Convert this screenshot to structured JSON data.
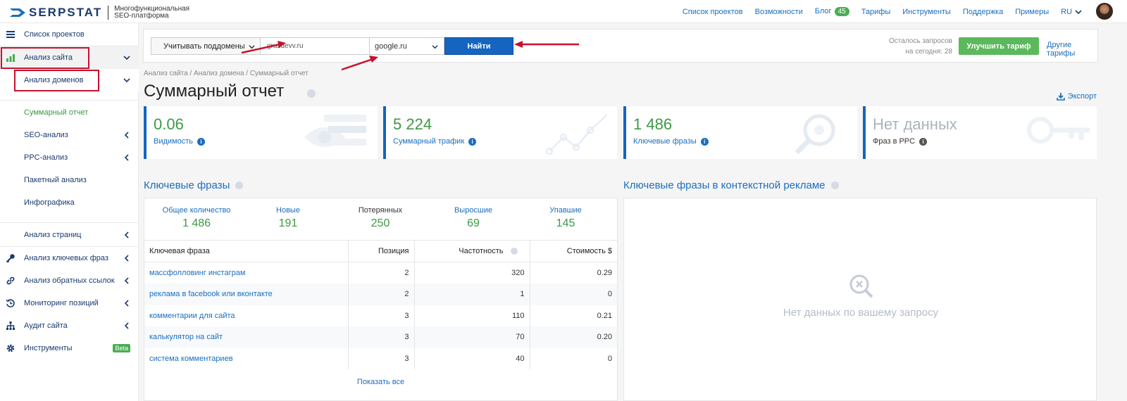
{
  "header": {
    "logo_text": "SERPSTAT",
    "logo_sub_line1": "Многофункциональная",
    "logo_sub_line2": "SEO-платформа",
    "nav": [
      "Список проектов",
      "Возможности",
      "Блог",
      "Тарифы",
      "Инструменты",
      "Поддержка",
      "Примеры"
    ],
    "blog_count": "45",
    "lang": "RU"
  },
  "sidebar": {
    "projects": "Список проектов",
    "site_analysis": "Анализ сайта",
    "domain_analysis": "Анализ доменов",
    "summary": "Суммарный отчет",
    "seo": "SEO-анализ",
    "ppc": "PPC-анализ",
    "batch": "Пакетный анализ",
    "infographics": "Инфографика",
    "pages": "Анализ страниц",
    "keywords": "Анализ ключевых фраз",
    "backlinks": "Анализ обратных ссылок",
    "monitoring": "Мониторинг позиций",
    "audit": "Аудит сайта",
    "tools": "Инструменты",
    "beta": "Beta"
  },
  "search": {
    "subdomain_label": "Учитывать поддомены",
    "domain_value": "gruzdevv.ru",
    "engine": "google.ru",
    "find": "Найти",
    "requests_line1": "Осталось запросов",
    "requests_line2": "на сегодня: 28",
    "upgrade": "Улучшить тариф",
    "other_plans": "Другие тарифы"
  },
  "breadcrumb": "Анализ сайта / Анализ домена / Суммарный отчет",
  "page_title": "Суммарный отчет",
  "export": "Экспорт",
  "cards": {
    "visibility": {
      "value": "0.06",
      "label": "Видимость"
    },
    "traffic": {
      "value": "5 224",
      "label": "Суммарный трафик"
    },
    "keywords": {
      "value": "1 486",
      "label": "Ключевые фразы"
    },
    "ppc": {
      "value": "Нет данных",
      "label": "Фраз в PPC"
    }
  },
  "keywords_section": {
    "title": "Ключевые фразы",
    "stats": {
      "total": {
        "label": "Общее количество",
        "value": "1 486"
      },
      "new": {
        "label": "Новые",
        "value": "191"
      },
      "lost": {
        "label": "Потерянных",
        "value": "250"
      },
      "improved": {
        "label": "Выросшие",
        "value": "69"
      },
      "declined": {
        "label": "Упавшие",
        "value": "145"
      }
    },
    "columns": [
      "Ключевая фраза",
      "Позиция",
      "Частотность",
      "Стоимость $"
    ],
    "rows": [
      [
        "массфолловинг инстаграм",
        "2",
        "320",
        "0.29"
      ],
      [
        "реклама в facebook или вконтакте",
        "2",
        "1",
        "0"
      ],
      [
        "комментарии для сайта",
        "3",
        "110",
        "0.21"
      ],
      [
        "калькулятор на сайт",
        "3",
        "70",
        "0.20"
      ],
      [
        "система комментариев",
        "3",
        "40",
        "0"
      ]
    ],
    "show_all": "Показать все"
  },
  "ppc_section": {
    "title": "Ключевые фразы в контекстной рекламе",
    "no_data": "Нет данных по вашему запросу"
  },
  "colors": {
    "brand": "#1a3a6e",
    "link": "#1a6fbf",
    "accent_green": "#3c9a44",
    "button_blue": "#1565c0",
    "annotation_red": "#c8102e"
  }
}
